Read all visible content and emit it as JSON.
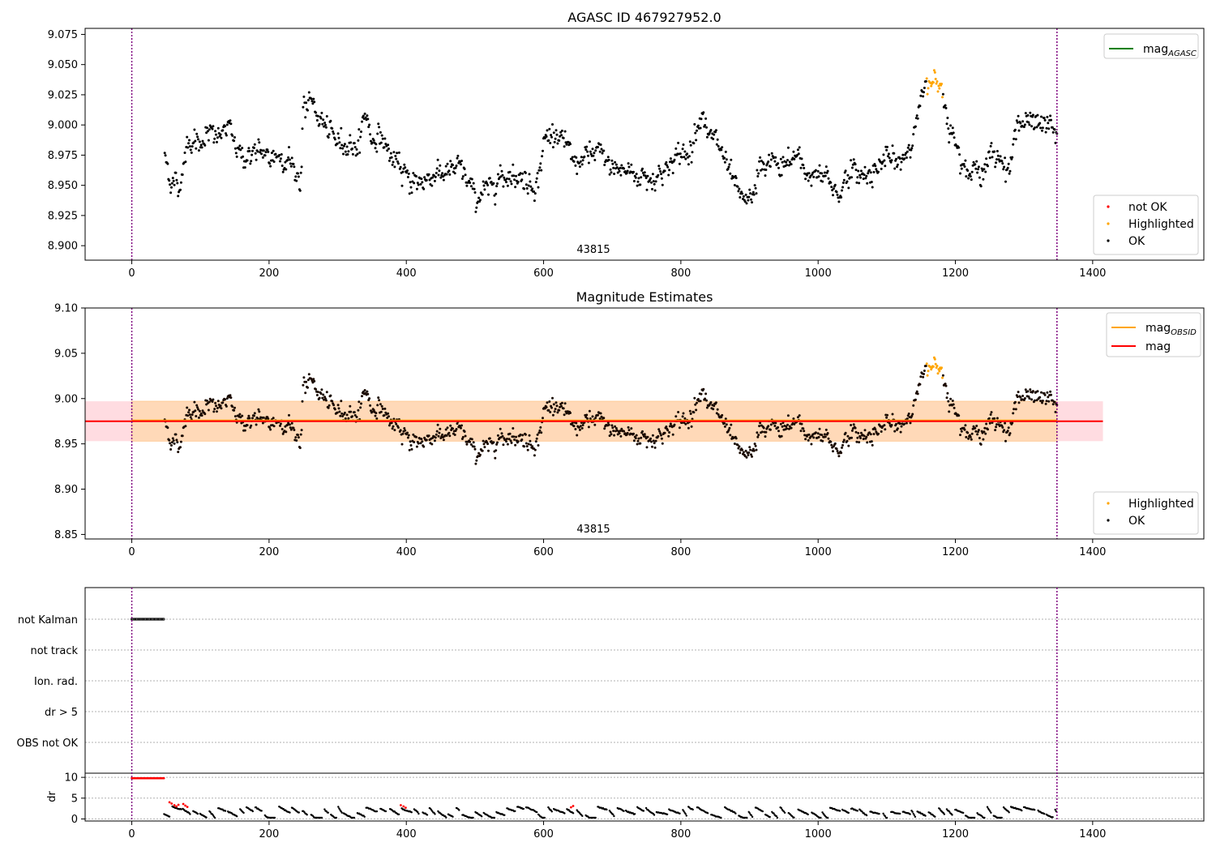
{
  "chart_data": [
    {
      "type": "scatter",
      "title": "AGASC ID 467927952.0",
      "obsid_label": "43815",
      "xlim": [
        -68,
        1562
      ],
      "ylim": [
        8.888,
        9.08
      ],
      "x_ticks": [
        0,
        200,
        400,
        600,
        800,
        1000,
        1200,
        1400
      ],
      "y_ticks": [
        8.9,
        8.925,
        8.95,
        8.975,
        9.0,
        9.025,
        9.05,
        9.075
      ],
      "y_tick_labels": [
        "8.900",
        "8.925",
        "8.950",
        "8.975",
        "9.000",
        "9.025",
        "9.050",
        "9.075"
      ],
      "vlines": [
        0,
        1348
      ],
      "legend_lines": [
        {
          "label": "mag",
          "sub": "AGASC",
          "color": "#008000"
        }
      ],
      "legend_points": [
        {
          "label": "not OK",
          "color": "#ff0000"
        },
        {
          "label": "Highlighted",
          "color": "#ffa500"
        },
        {
          "label": "OK",
          "color": "#000000"
        }
      ],
      "trend": [
        [
          48,
          8.975
        ],
        [
          58,
          8.952
        ],
        [
          70,
          8.95
        ],
        [
          82,
          8.988
        ],
        [
          95,
          8.985
        ],
        [
          110,
          8.992
        ],
        [
          125,
          8.99
        ],
        [
          140,
          8.998
        ],
        [
          150,
          8.985
        ],
        [
          165,
          8.972
        ],
        [
          180,
          8.978
        ],
        [
          200,
          8.972
        ],
        [
          215,
          8.976
        ],
        [
          230,
          8.97
        ],
        [
          240,
          8.96
        ],
        [
          246,
          8.952
        ],
        [
          250,
          9.015
        ],
        [
          262,
          9.018
        ],
        [
          275,
          9.005
        ],
        [
          290,
          8.99
        ],
        [
          310,
          8.985
        ],
        [
          330,
          8.982
        ],
        [
          340,
          9.012
        ],
        [
          350,
          8.988
        ],
        [
          365,
          8.99
        ],
        [
          380,
          8.97
        ],
        [
          400,
          8.958
        ],
        [
          415,
          8.952
        ],
        [
          430,
          8.955
        ],
        [
          445,
          8.962
        ],
        [
          460,
          8.96
        ],
        [
          480,
          8.965
        ],
        [
          500,
          8.94
        ],
        [
          515,
          8.945
        ],
        [
          530,
          8.955
        ],
        [
          550,
          8.96
        ],
        [
          570,
          8.955
        ],
        [
          590,
          8.95
        ],
        [
          600,
          8.985
        ],
        [
          615,
          8.995
        ],
        [
          630,
          8.985
        ],
        [
          645,
          8.968
        ],
        [
          660,
          8.972
        ],
        [
          680,
          8.978
        ],
        [
          700,
          8.965
        ],
        [
          720,
          8.962
        ],
        [
          740,
          8.958
        ],
        [
          760,
          8.955
        ],
        [
          780,
          8.965
        ],
        [
          800,
          8.975
        ],
        [
          815,
          8.98
        ],
        [
          830,
          9.015
        ],
        [
          840,
          8.99
        ],
        [
          855,
          8.985
        ],
        [
          870,
          8.96
        ],
        [
          885,
          8.94
        ],
        [
          900,
          8.935
        ],
        [
          915,
          8.962
        ],
        [
          930,
          8.97
        ],
        [
          950,
          8.965
        ],
        [
          970,
          8.975
        ],
        [
          985,
          8.958
        ],
        [
          1000,
          8.96
        ],
        [
          1015,
          8.955
        ],
        [
          1030,
          8.942
        ],
        [
          1045,
          8.962
        ],
        [
          1060,
          8.958
        ],
        [
          1080,
          8.962
        ],
        [
          1100,
          8.972
        ],
        [
          1120,
          8.968
        ],
        [
          1135,
          8.985
        ],
        [
          1150,
          9.02
        ],
        [
          1165,
          9.038
        ],
        [
          1180,
          9.035
        ],
        [
          1190,
          9.0
        ],
        [
          1205,
          8.98
        ],
        [
          1220,
          8.962
        ],
        [
          1235,
          8.96
        ],
        [
          1250,
          8.972
        ],
        [
          1265,
          8.975
        ],
        [
          1280,
          8.962
        ],
        [
          1290,
          9.005
        ],
        [
          1305,
          9.002
        ],
        [
          1320,
          9.0
        ],
        [
          1335,
          9.0
        ],
        [
          1348,
          8.992
        ]
      ],
      "highlight_range": [
        1158,
        1182
      ],
      "noise": 0.0075,
      "n_points": 1200
    },
    {
      "type": "scatter",
      "title": "Magnitude Estimates",
      "obsid_label": "43815",
      "xlim": [
        -68,
        1562
      ],
      "ylim": [
        8.845,
        9.1
      ],
      "x_ticks": [
        0,
        200,
        400,
        600,
        800,
        1000,
        1200,
        1400
      ],
      "y_ticks": [
        8.85,
        8.9,
        8.95,
        9.0,
        9.05,
        9.1
      ],
      "y_tick_labels": [
        "8.85",
        "8.90",
        "8.95",
        "9.00",
        "9.05",
        "9.10"
      ],
      "vlines": [
        0,
        1348
      ],
      "mean_mag": 8.975,
      "band_pink": [
        8.953,
        8.997,
        -68,
        1415
      ],
      "band_orange": [
        8.953,
        8.997,
        0,
        1348
      ],
      "legend_lines": [
        {
          "label": "mag",
          "sub": "OBSID",
          "color": "#ffa500"
        },
        {
          "label": "mag",
          "sub": "",
          "color": "#ff0000"
        }
      ],
      "legend_points": [
        {
          "label": "Highlighted",
          "color": "#ffa500"
        },
        {
          "label": "OK",
          "color": "#000000"
        }
      ]
    },
    {
      "type": "scatter",
      "title": "",
      "xlim": [
        -68,
        1562
      ],
      "flag_rows": [
        "not Kalman",
        "not track",
        "Ion. rad.",
        "dr > 5",
        "OBS not OK"
      ],
      "flag_segments": [
        {
          "row": "not Kalman",
          "from": 0,
          "to": 47
        }
      ],
      "dr_ylim": [
        -0.5,
        11
      ],
      "dr_ticks": [
        0,
        5,
        10
      ],
      "dr_label": "dr",
      "x_ticks": [
        0,
        200,
        400,
        600,
        800,
        1000,
        1200,
        1400
      ],
      "vlines": [
        0,
        1348
      ],
      "dr_high_segment": {
        "from": 0,
        "to": 47,
        "value": 9.8
      },
      "red_points": [
        [
          55,
          4.0
        ],
        [
          58,
          3.7
        ],
        [
          62,
          3.3
        ],
        [
          65,
          3.0
        ],
        [
          68,
          3.4
        ],
        [
          75,
          3.6
        ],
        [
          78,
          3.2
        ],
        [
          81,
          2.9
        ],
        [
          392,
          3.3
        ],
        [
          396,
          3.0
        ],
        [
          399,
          2.7
        ],
        [
          640,
          2.8
        ],
        [
          643,
          3.1
        ]
      ]
    }
  ]
}
